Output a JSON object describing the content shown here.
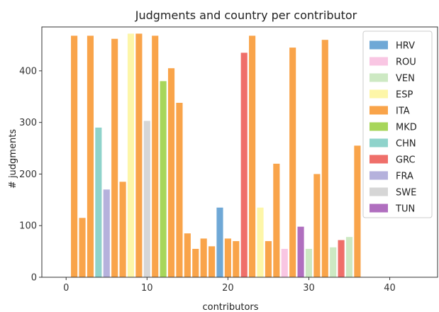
{
  "chart_data": {
    "type": "bar",
    "title": "Judgments and country per contributor",
    "xlabel": "contributors",
    "ylabel": "# judgments",
    "xlim": [
      -3,
      46
    ],
    "ylim": [
      0,
      485
    ],
    "xticks": [
      0,
      10,
      20,
      30,
      40
    ],
    "yticks": [
      0,
      100,
      200,
      300,
      400
    ],
    "grid": false,
    "legend_position": "top-right",
    "series": [
      {
        "name": "HRV",
        "color": "#6fa8d6",
        "x": [
          19
        ],
        "values": [
          135
        ]
      },
      {
        "name": "ROU",
        "color": "#f9c6e3",
        "x": [
          27
        ],
        "values": [
          55
        ]
      },
      {
        "name": "VEN",
        "color": "#cde9c3",
        "x": [
          30,
          33,
          35
        ],
        "values": [
          55,
          58,
          78
        ]
      },
      {
        "name": "ESP",
        "color": "#fdf6a8",
        "x": [
          8,
          24
        ],
        "values": [
          472,
          135
        ]
      },
      {
        "name": "ITA",
        "color": "#f9a44a",
        "x": [
          1,
          2,
          3,
          6,
          7,
          9,
          11,
          13,
          14,
          15,
          16,
          17,
          18,
          20,
          21,
          23,
          25,
          26,
          28,
          31,
          32,
          36
        ],
        "values": [
          468,
          115,
          468,
          462,
          185,
          472,
          468,
          405,
          338,
          85,
          55,
          75,
          60,
          75,
          70,
          468,
          70,
          220,
          445,
          200,
          460,
          255
        ]
      },
      {
        "name": "MKD",
        "color": "#a7d65a",
        "x": [
          12
        ],
        "values": [
          380
        ]
      },
      {
        "name": "CHN",
        "color": "#8fd3cb",
        "x": [
          4
        ],
        "values": [
          290
        ]
      },
      {
        "name": "GRC",
        "color": "#ef6f6a",
        "x": [
          22,
          34
        ],
        "values": [
          435,
          72
        ]
      },
      {
        "name": "FRA",
        "color": "#b5b1dc",
        "x": [
          5
        ],
        "values": [
          170
        ]
      },
      {
        "name": "SWE",
        "color": "#d6d6d6",
        "x": [
          10
        ],
        "values": [
          303
        ]
      },
      {
        "name": "TUN",
        "color": "#b06fbf",
        "x": [
          29
        ],
        "values": [
          98
        ]
      }
    ]
  }
}
